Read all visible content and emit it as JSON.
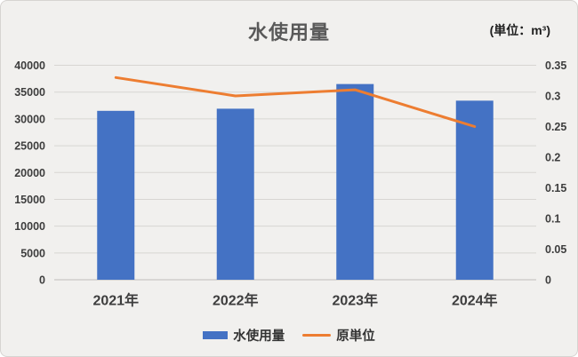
{
  "header": {
    "title": "水使用量",
    "unit_label": "(単位：m³)"
  },
  "legend": {
    "items": [
      {
        "label": "水使用量",
        "swatch": "bar",
        "color": "#4472C4"
      },
      {
        "label": "原単位",
        "swatch": "line",
        "color": "#ED7D31"
      }
    ]
  },
  "colors": {
    "background": "#f1f0ee",
    "bar": "#4472C4",
    "line": "#ED7D31",
    "gridline": "#d7d5d2",
    "axis_line": "#bfbcb9",
    "tick_text": "#3d3d3d",
    "title_text": "#595959"
  },
  "chart_data": {
    "type": "bar",
    "subtype": "combo-bar-line-dual-axis",
    "title": "水使用量",
    "unit": "(単位：m³)",
    "categories": [
      "2021年",
      "2022年",
      "2023年",
      "2024年"
    ],
    "series": [
      {
        "name": "水使用量",
        "type": "bar",
        "axis": "left",
        "color": "#4472C4",
        "values": [
          31500,
          31900,
          36500,
          33400
        ]
      },
      {
        "name": "原単位",
        "type": "line",
        "axis": "right",
        "color": "#ED7D31",
        "values": [
          0.33,
          0.3,
          0.31,
          0.25
        ]
      }
    ],
    "left_axis": {
      "min": 0,
      "max": 40000,
      "step": 5000,
      "ticks": [
        0,
        5000,
        10000,
        15000,
        20000,
        25000,
        30000,
        35000,
        40000
      ]
    },
    "right_axis": {
      "min": 0,
      "max": 0.35,
      "step": 0.05,
      "ticks": [
        0,
        0.05,
        0.1,
        0.15,
        0.2,
        0.25,
        0.3,
        0.35
      ]
    },
    "grid": true,
    "legend_position": "bottom"
  }
}
